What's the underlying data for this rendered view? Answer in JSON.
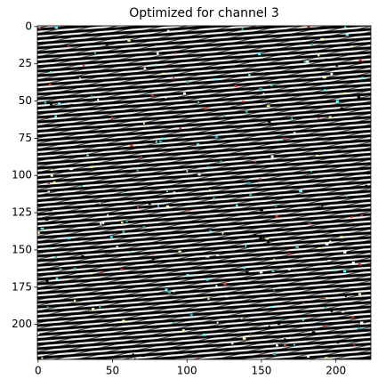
{
  "chart_data": {
    "type": "image",
    "title": "Optimized for channel 3",
    "xlim": [
      -0.5,
      223.5
    ],
    "ylim": [
      223.5,
      -0.5
    ],
    "xticks": [
      0,
      50,
      100,
      150,
      200
    ],
    "yticks": [
      0,
      25,
      50,
      75,
      100,
      125,
      150,
      175,
      200
    ]
  }
}
